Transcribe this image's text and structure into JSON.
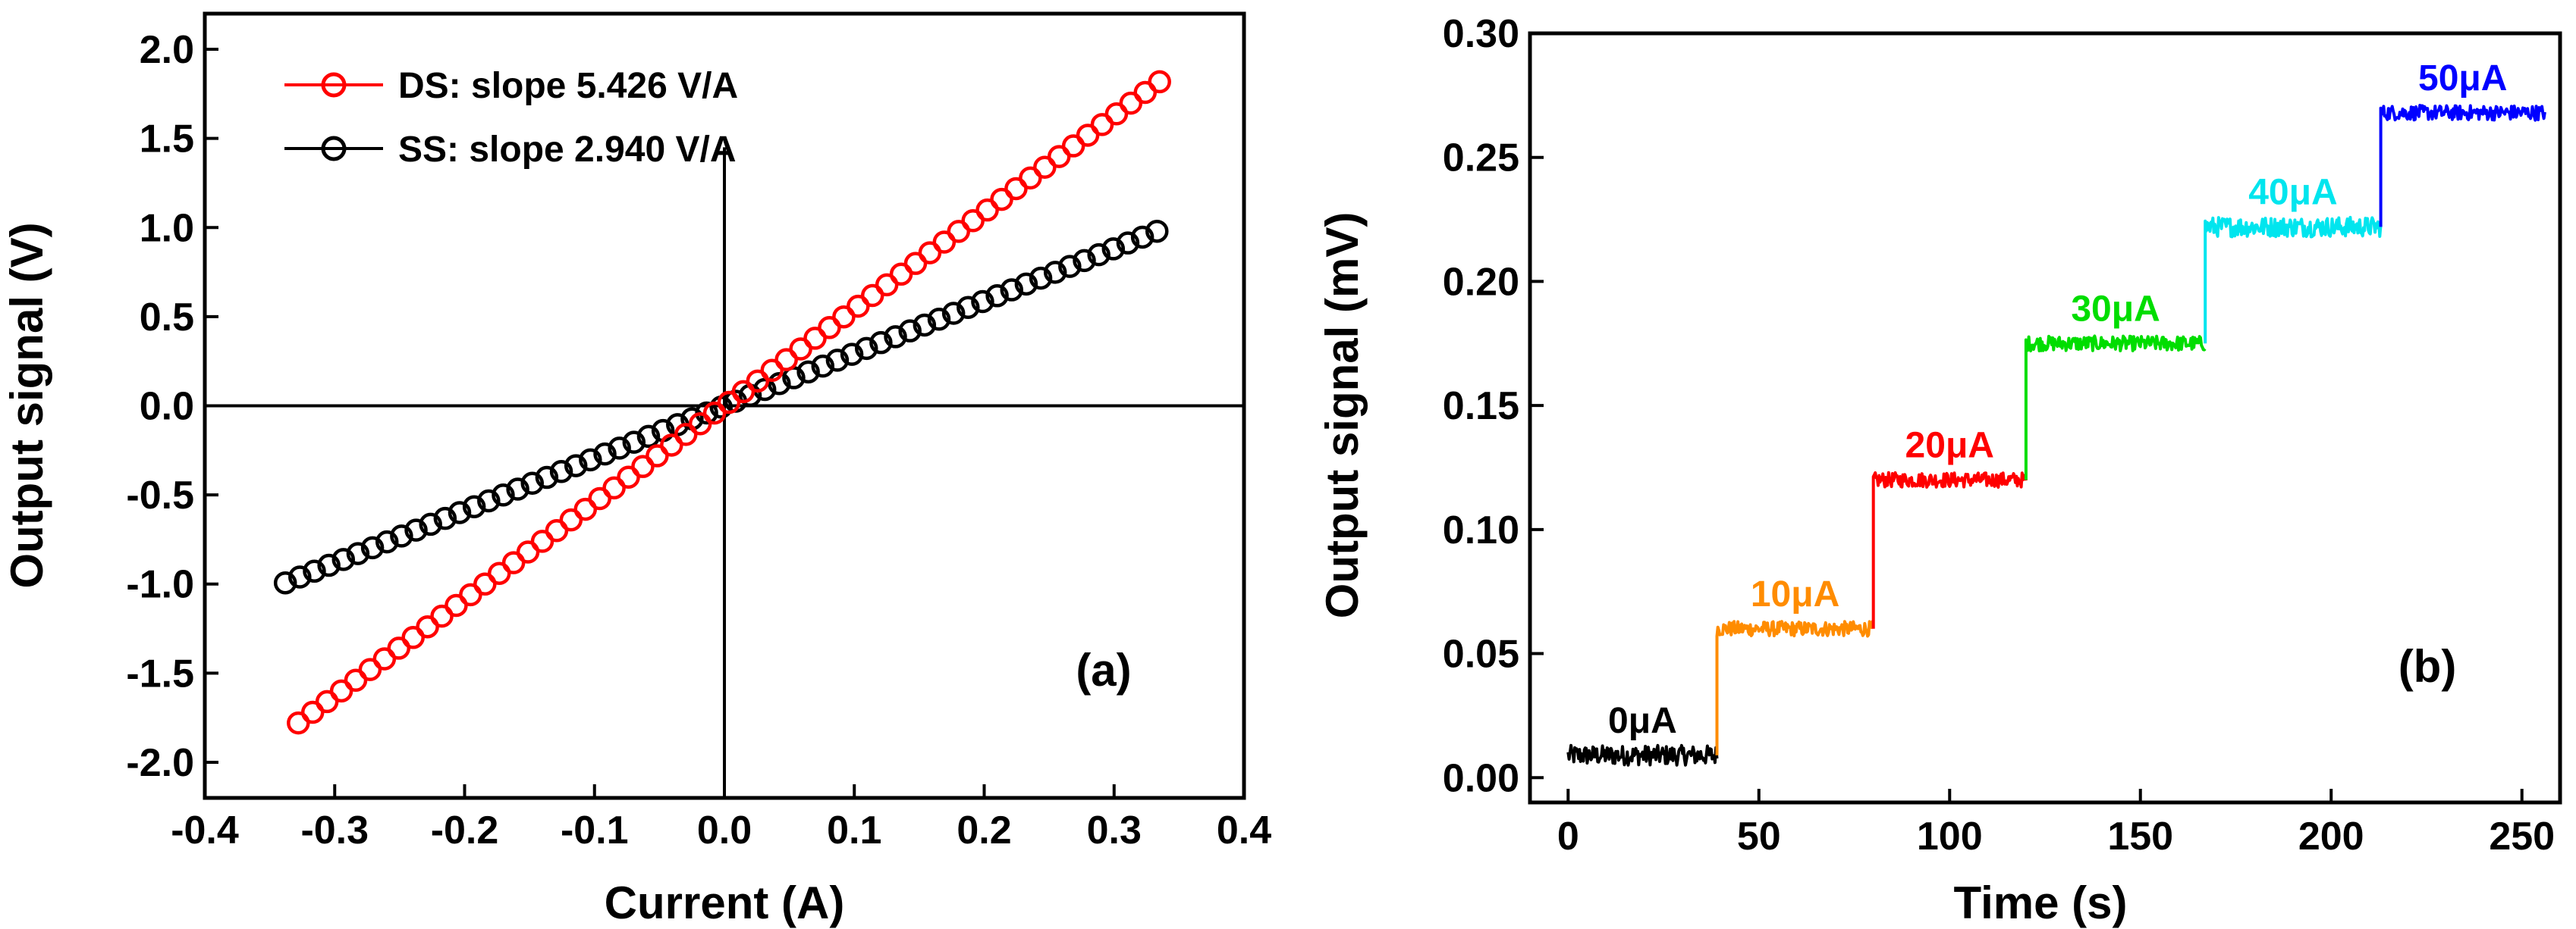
{
  "chart_data": [
    {
      "type": "scatter",
      "panel_label": "(a)",
      "xlabel": "Current (A)",
      "ylabel": "Output signal (V)",
      "xlim": [
        -0.4,
        0.4
      ],
      "ylim": [
        -2.2,
        2.2
      ],
      "x_ticks": [
        "-0.4",
        "-0.3",
        "-0.2",
        "-0.1",
        "0.0",
        "0.1",
        "0.2",
        "0.3",
        "0.4"
      ],
      "y_ticks": [
        "-2.0",
        "-1.5",
        "-1.0",
        "-0.5",
        "0.0",
        "0.5",
        "1.0",
        "1.5",
        "2.0"
      ],
      "legend_position": "top-left",
      "zero_lines": true,
      "series": [
        {
          "name": "DS: slope 5.426 V/A",
          "color": "#ff0000",
          "marker": "open-circle",
          "slope": 5.426,
          "intercept": 0.0,
          "x_start": -0.328,
          "x_end": 0.335,
          "n_points": 61
        },
        {
          "name": "SS: slope 2.940 V/A",
          "color": "#000000",
          "marker": "open-circle",
          "slope": 2.94,
          "intercept": 0.0,
          "x_start": -0.338,
          "x_end": 0.333,
          "n_points": 61
        }
      ]
    },
    {
      "type": "line",
      "panel_label": "(b)",
      "xlabel": "Time (s)",
      "ylabel": "Output signal (mV)",
      "xlim": [
        -10,
        260
      ],
      "ylim": [
        -0.01,
        0.3
      ],
      "x_ticks": [
        "0",
        "50",
        "100",
        "150",
        "200",
        "250"
      ],
      "y_ticks": [
        "0.00",
        "0.05",
        "0.10",
        "0.15",
        "0.20",
        "0.25",
        "0.30"
      ],
      "series": [
        {
          "label": "0μA",
          "color": "#000000",
          "t_start": 0,
          "t_end": 39,
          "level": 0.009,
          "noise": 0.004
        },
        {
          "label": "10μA",
          "color": "#ff8c00",
          "t_start": 39,
          "t_end": 80,
          "level": 0.06,
          "noise": 0.003
        },
        {
          "label": "20μA",
          "color": "#ff0000",
          "t_start": 80,
          "t_end": 120,
          "level": 0.12,
          "noise": 0.003
        },
        {
          "label": "30μA",
          "color": "#00dd00",
          "t_start": 120,
          "t_end": 167,
          "level": 0.175,
          "noise": 0.003
        },
        {
          "label": "40μA",
          "color": "#00e5ee",
          "t_start": 167,
          "t_end": 213,
          "level": 0.222,
          "noise": 0.004
        },
        {
          "label": "50μA",
          "color": "#0000ff",
          "t_start": 213,
          "t_end": 256,
          "level": 0.268,
          "noise": 0.003
        }
      ]
    }
  ]
}
